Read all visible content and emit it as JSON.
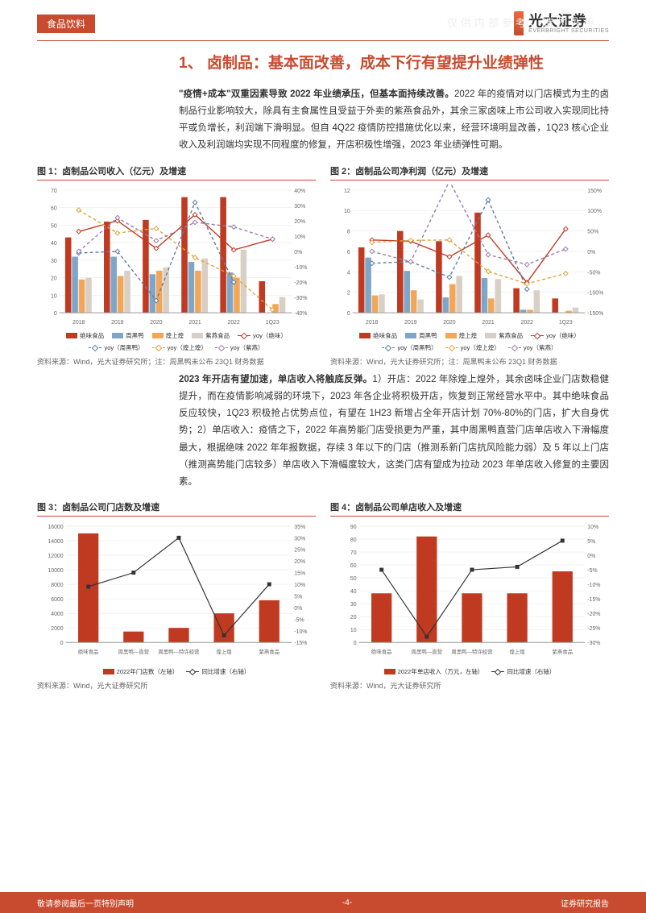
{
  "watermark": "仅供内部参考，请勿外传",
  "header": {
    "category": "食品饮料",
    "brand": "光大证券",
    "brand_en": "EVERBRIGHT SECURITIES"
  },
  "section_title": "1、 卤制品：基本面改善，成本下行有望提升业绩弹性",
  "para1_lead": "\"疫情+成本\"双重因素导致 2022 年业绩承压，但基本面持续改善。",
  "para1_body": "2022 年的疫情对以门店模式为主的卤制品行业影响较大，除具有主食属性且受益于外卖的紫燕食品外，其余三家卤味上市公司收入实现同比持平或负增长，利润端下滑明显。但自 4Q22 疫情防控措施优化以来，经营环境明显改善，1Q23 核心企业收入及利润端均实现不同程度的修复，开店积极性增强，2023 年业绩弹性可期。",
  "para2_lead": "2023 年开店有望加速，单店收入将触底反弹。",
  "para2_body": "1）开店：2022 年除煌上煌外，其余卤味企业门店数稳健提升，而在疫情影响减弱的环境下，2023 年各企业将积极开店，恢复到正常经营水平中。其中绝味食品反应较快，1Q23 积极抢占优势点位，有望在 1H23 新增占全年开店计划 70%-80%的门店，扩大自身优势；2）单店收入：疫情之下，2022 年高势能门店受损更为严重，其中周黑鸭直营门店单店收入下滑幅度最大，根据绝味 2022 年年报数据，存续 3 年以下的门店（推测系新门店抗风险能力弱）及 5 年以上门店（推测高势能门店较多）单店收入下滑幅度较大，这类门店有望成为拉动 2023 年单店收入修复的主要因素。",
  "colors": {
    "accent": "#c84b2f",
    "series": {
      "juewei": "#c03a22",
      "zhouheiya": "#7fa6c9",
      "huangshanghuang": "#f2a65a",
      "ziyan": "#d9d0c5"
    },
    "lines": {
      "juewei": "#c03a22",
      "zhouheiya": "#5b7fa3",
      "huangshanghuang": "#e0a23a",
      "ziyan": "#9b7bb0"
    },
    "grid": "#e6e6e6",
    "axis": "#888888",
    "bg": "#ffffff"
  },
  "fig1": {
    "title": "图 1：卤制品公司收入（亿元）及增速",
    "source": "资料来源：Wind，光大证券研究所；注：周黑鸭未公布 23Q1 财务数据",
    "type": "grouped-bar-with-lines",
    "categories": [
      "2018",
      "2019",
      "2020",
      "2021",
      "2022",
      "1Q23"
    ],
    "y_left": {
      "min": 0,
      "max": 70,
      "step": 10
    },
    "y_right": {
      "min": -40,
      "max": 40,
      "step": 10,
      "suffix": "%"
    },
    "bars": {
      "juewei": [
        43,
        52,
        53,
        66,
        66,
        18
      ],
      "zhouheiya": [
        32,
        32,
        22,
        29,
        23,
        0
      ],
      "huangshanghuang": [
        19,
        21,
        24,
        24,
        20,
        5
      ],
      "ziyan": [
        20,
        24,
        26,
        31,
        36,
        9
      ]
    },
    "lines_pct": {
      "juewei": [
        13,
        20,
        2,
        24,
        1,
        8
      ],
      "zhouheiya": [
        -1,
        0,
        -32,
        32,
        -20,
        0
      ],
      "huangshanghuang": [
        27,
        12,
        15,
        -4,
        -16,
        -38
      ],
      "ziyan": [
        0,
        22,
        7,
        19,
        16,
        8
      ]
    },
    "legend_bars": [
      "绝味食品",
      "周黑鸭",
      "煌上煌",
      "紫燕食品"
    ],
    "legend_lines": [
      "yoy（绝味）",
      "yoy（周黑鸭）",
      "yoy（煌上煌）",
      "yoy（紫燕）"
    ]
  },
  "fig2": {
    "title": "图 2：卤制品公司净利润（亿元）及增速",
    "source": "资料来源：Wind，光大证券研究所；注：周黑鸭未公布 23Q1 财务数据",
    "type": "grouped-bar-with-lines",
    "categories": [
      "2018",
      "2019",
      "2020",
      "2021",
      "2022",
      "1Q23"
    ],
    "y_left": {
      "min": 0,
      "max": 12,
      "step": 2
    },
    "y_right": {
      "min": -150,
      "max": 150,
      "step": 50,
      "suffix": "%"
    },
    "bars": {
      "juewei": [
        6.4,
        8.0,
        7.0,
        9.8,
        2.4,
        1.4
      ],
      "zhouheiya": [
        5.4,
        4.1,
        1.5,
        3.4,
        0.3,
        0
      ],
      "huangshanghuang": [
        1.7,
        2.2,
        2.8,
        1.4,
        0.3,
        0.2
      ],
      "ziyan": [
        1.8,
        1.3,
        3.6,
        3.3,
        2.2,
        0.5
      ]
    },
    "lines_pct": {
      "juewei": [
        28,
        25,
        -13,
        40,
        -76,
        55
      ],
      "zhouheiya": [
        -29,
        -25,
        -63,
        126,
        -92,
        0
      ],
      "huangshanghuang": [
        22,
        27,
        28,
        -49,
        -79,
        -54
      ],
      "ziyan": [
        0,
        -25,
        172,
        -8,
        -32,
        6
      ]
    },
    "legend_bars": [
      "绝味食品",
      "周黑鸭",
      "煌上煌",
      "紫燕食品"
    ],
    "legend_lines": [
      "yoy（绝味）",
      "yoy（周黑鸭）",
      "yoy（煌上煌）",
      "yoy（紫燕）"
    ]
  },
  "fig3": {
    "title": "图 3：卤制品公司门店数及增速",
    "source": "资料来源：Wind，光大证券研究所",
    "type": "bar-with-line",
    "categories": [
      "绝味食品",
      "周黑鸭—直营",
      "周黑鸭—特许经营",
      "煌上煌",
      "紫燕食品"
    ],
    "y_left": {
      "min": 0,
      "max": 16000,
      "step": 2000
    },
    "y_right": {
      "min": -15,
      "max": 35,
      "step": 5,
      "suffix": "%"
    },
    "bar_values": [
      15000,
      1500,
      2000,
      4000,
      5800
    ],
    "line_values_pct": [
      9,
      15,
      30,
      -12,
      10
    ],
    "legend_bar": "2022年门店数（左轴）",
    "legend_line": "同比增速（右轴）"
  },
  "fig4": {
    "title": "图 4：卤制品公司单店收入及增速",
    "source": "资料来源：Wind，光大证券研究所",
    "type": "bar-with-line",
    "categories": [
      "绝味食品",
      "周黑鸭—直营",
      "周黑鸭—特许经营",
      "煌上煌",
      "紫燕食品"
    ],
    "y_left": {
      "min": 0,
      "max": 90,
      "step": 10
    },
    "y_right": {
      "min": -30,
      "max": 10,
      "step": 5,
      "suffix": "%"
    },
    "bar_values": [
      38,
      82,
      38,
      38,
      55
    ],
    "line_values_pct": [
      -5,
      -28,
      -5,
      -4,
      5
    ],
    "legend_bar": "2022年单店收入（万元，左轴）",
    "legend_line": "同比增速（右轴）"
  },
  "footer": {
    "left": "敬请参阅最后一页特别声明",
    "center": "-4-",
    "right": "证券研究报告"
  }
}
